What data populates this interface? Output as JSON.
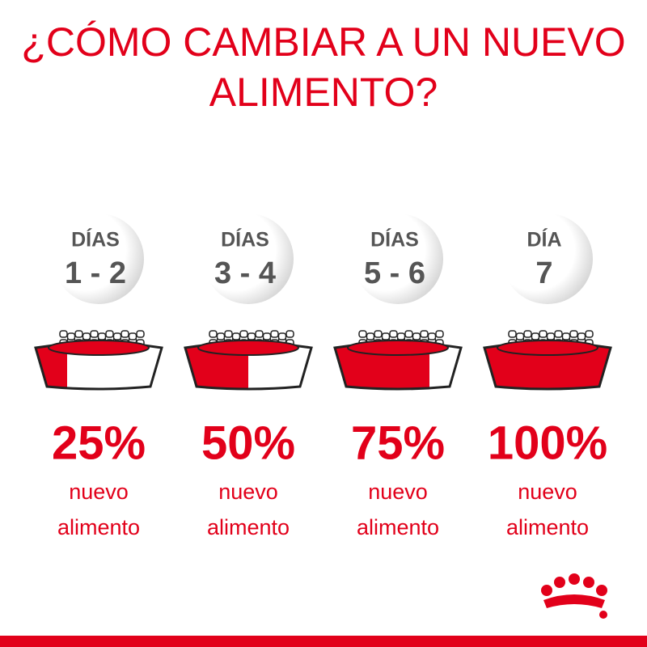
{
  "title": [
    "¿CÓMO CAMBIAR A UN NUEVO",
    "ALIMENTO?"
  ],
  "steps": [
    {
      "day_label": "DÍAS",
      "days": "1 - 2",
      "percent": 25,
      "percent_label": "25%",
      "text": [
        "nuevo",
        "alimento"
      ]
    },
    {
      "day_label": "DÍAS",
      "days": "3 - 4",
      "percent": 50,
      "percent_label": "50%",
      "text": [
        "nuevo",
        "alimento"
      ]
    },
    {
      "day_label": "DÍAS",
      "days": "5 - 6",
      "percent": 75,
      "percent_label": "75%",
      "text": [
        "nuevo",
        "alimento"
      ]
    },
    {
      "day_label": "DÍA",
      "days": "7",
      "percent": 100,
      "percent_label": "100%",
      "text": [
        "nuevo",
        "alimento"
      ]
    }
  ]
}
